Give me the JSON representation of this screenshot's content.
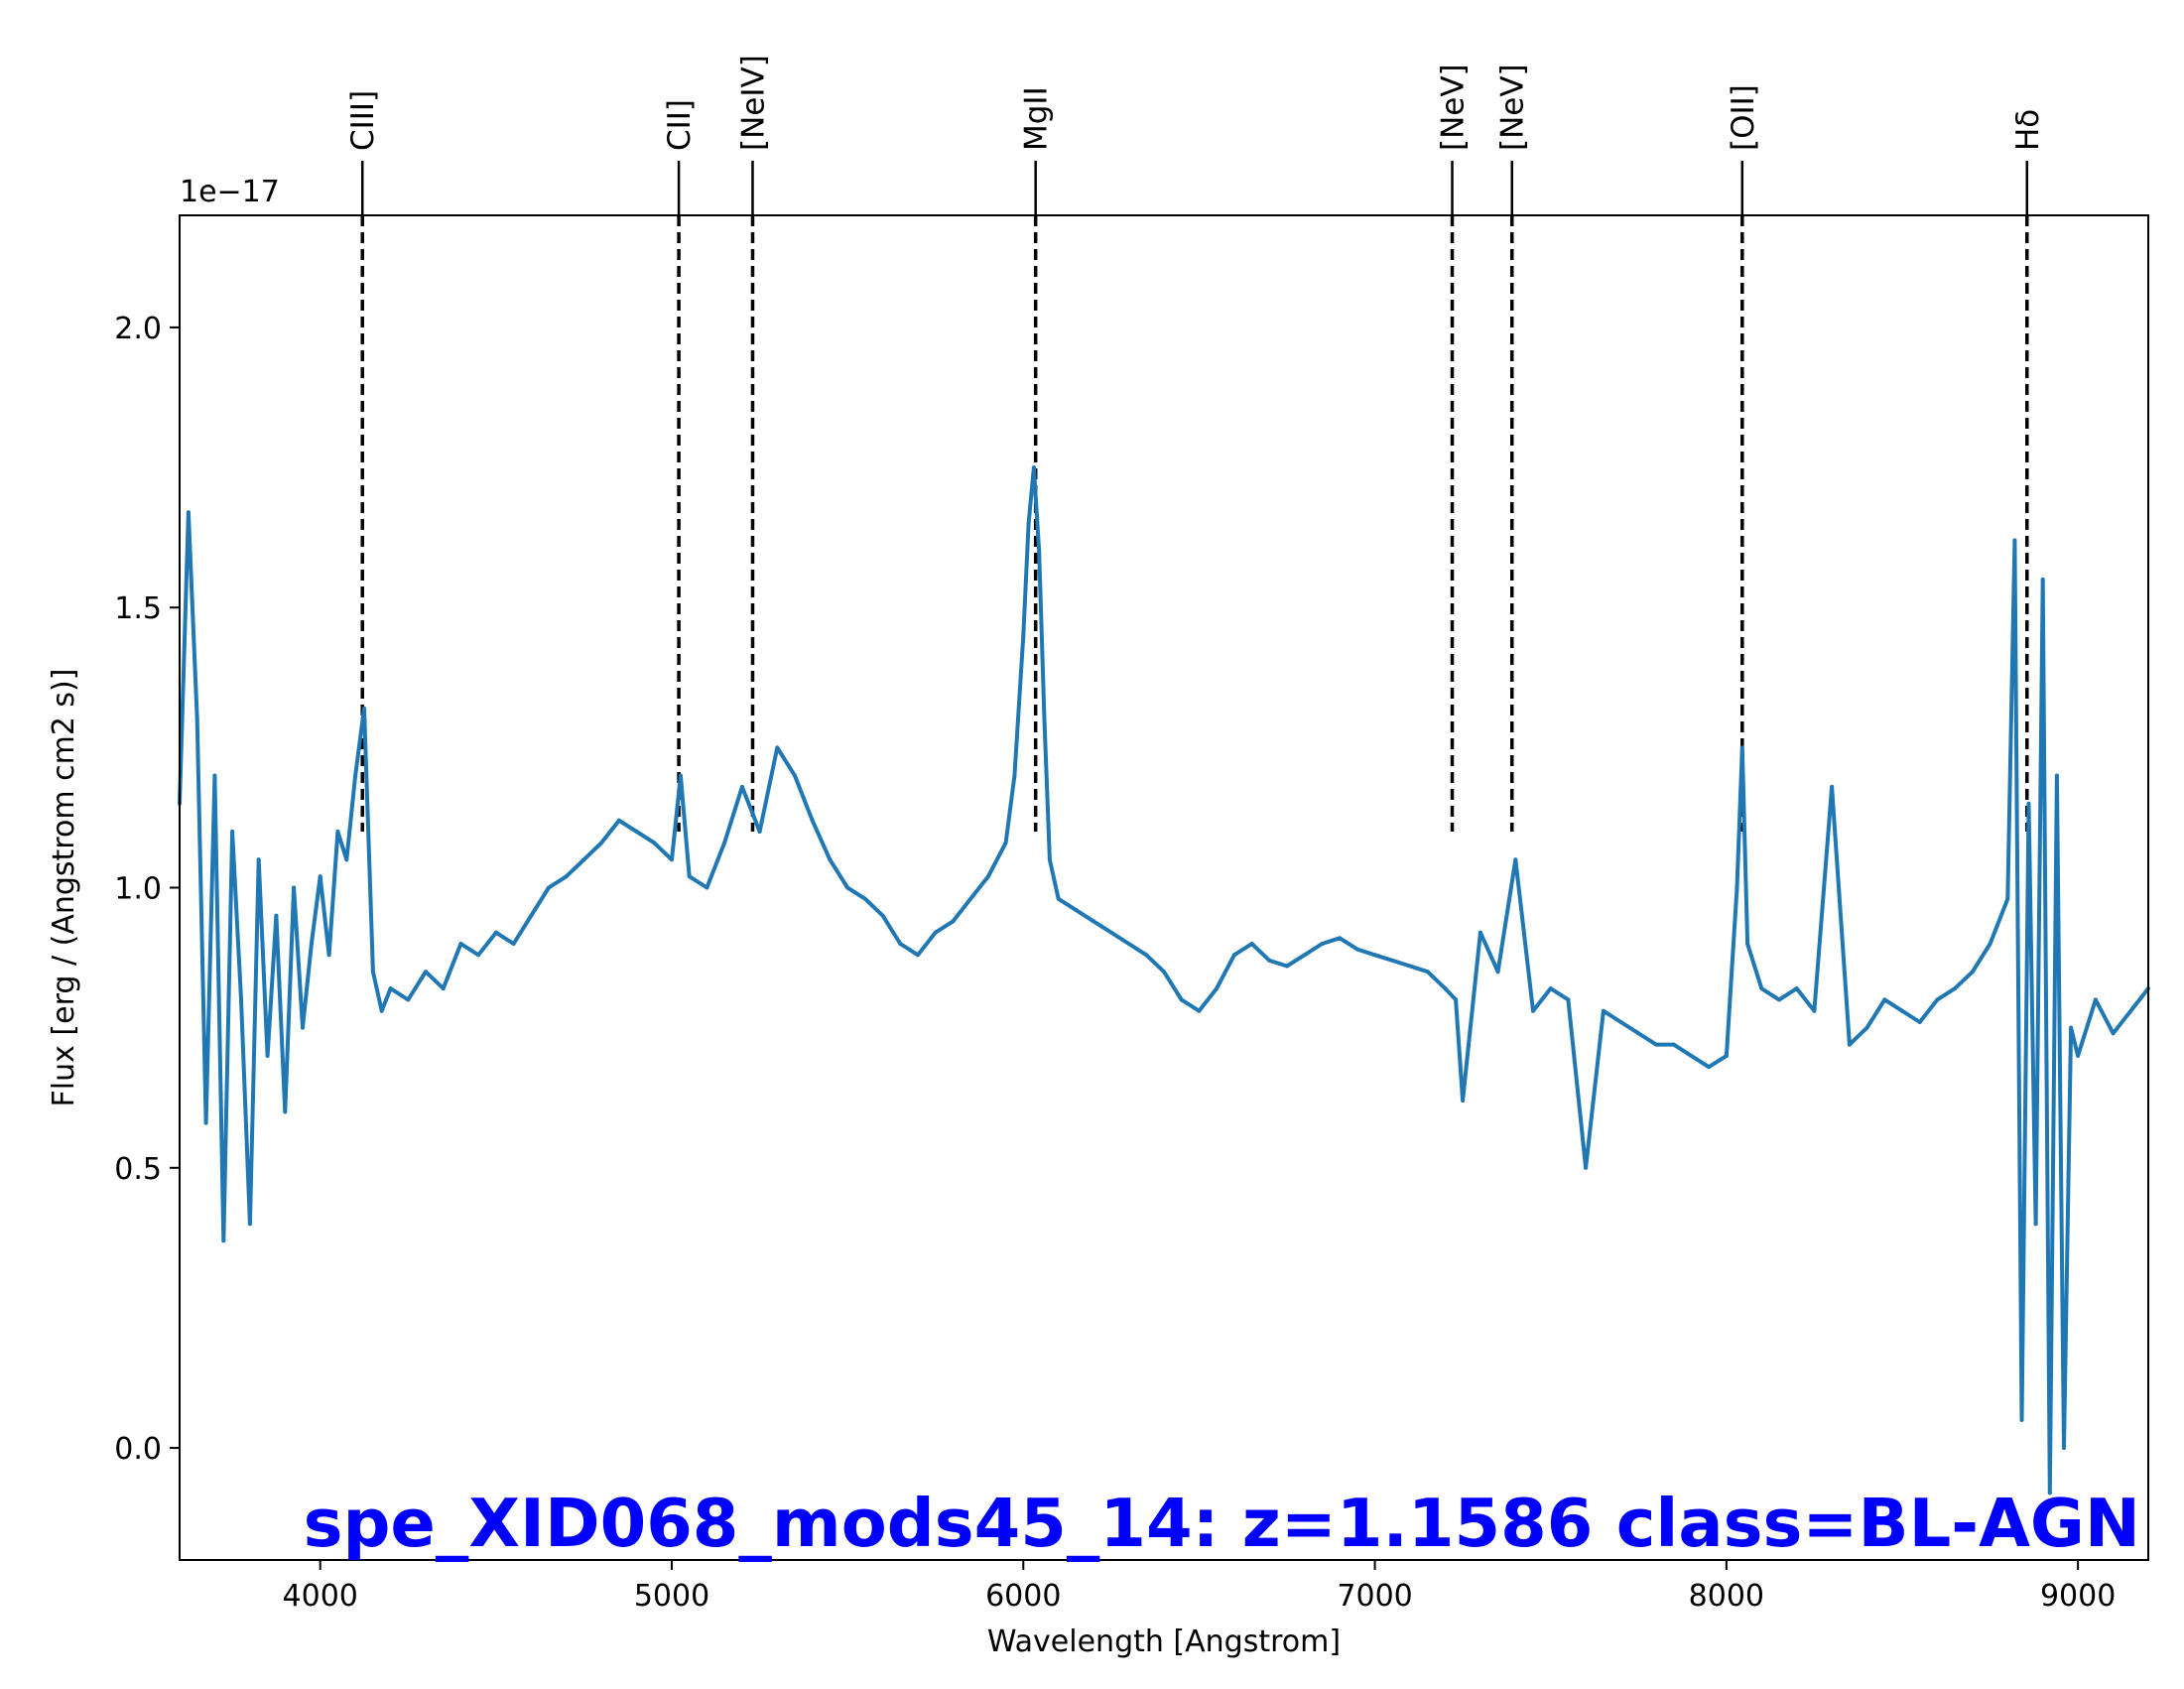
{
  "chart_data": {
    "type": "line",
    "title": "spe_XID068_mods45_14: z=1.1586 class=BL-AGN",
    "title_color": "#0000ff",
    "xlabel": "Wavelength [Angstrom]",
    "ylabel": "Flux [erg / (Angstrom cm2 s)]",
    "y_offset_label": "1e−17",
    "xlim": [
      3600,
      9200
    ],
    "ylim": [
      -0.2,
      2.2
    ],
    "x_ticks": [
      4000,
      5000,
      6000,
      7000,
      8000,
      9000
    ],
    "x_tick_labels": [
      "4000",
      "5000",
      "6000",
      "7000",
      "8000",
      "9000"
    ],
    "y_ticks": [
      0.0,
      0.5,
      1.0,
      1.5,
      2.0
    ],
    "y_tick_labels": [
      "0.0",
      "0.5",
      "1.0",
      "1.5",
      "2.0"
    ],
    "grid": false,
    "series_color": "#1f77b4",
    "series": [
      {
        "x": [
          3600,
          3625,
          3650,
          3675,
          3700,
          3725,
          3750,
          3775,
          3800,
          3825,
          3850,
          3875,
          3900,
          3925,
          3950,
          3975,
          4000,
          4025,
          4050,
          4075,
          4100,
          4125,
          4150,
          4175,
          4200,
          4250,
          4300,
          4350,
          4400,
          4450,
          4500,
          4550,
          4600,
          4650,
          4700,
          4750,
          4800,
          4850,
          4900,
          4950,
          5000,
          5025,
          5050,
          5100,
          5150,
          5200,
          5250,
          5300,
          5350,
          5400,
          5450,
          5500,
          5550,
          5600,
          5650,
          5700,
          5750,
          5800,
          5850,
          5900,
          5950,
          5975,
          6000,
          6015,
          6030,
          6045,
          6060,
          6075,
          6100,
          6150,
          6200,
          6250,
          6300,
          6350,
          6400,
          6450,
          6500,
          6550,
          6600,
          6650,
          6700,
          6750,
          6800,
          6850,
          6900,
          6950,
          7000,
          7050,
          7100,
          7150,
          7200,
          7230,
          7250,
          7300,
          7350,
          7400,
          7450,
          7500,
          7550,
          7600,
          7650,
          7700,
          7750,
          7800,
          7850,
          7900,
          7950,
          8000,
          8030,
          8045,
          8060,
          8100,
          8150,
          8200,
          8250,
          8300,
          8350,
          8400,
          8450,
          8500,
          8550,
          8600,
          8650,
          8700,
          8750,
          8800,
          8820,
          8840,
          8860,
          8880,
          8900,
          8920,
          8940,
          8960,
          8980,
          9000,
          9050,
          9100,
          9150,
          9200
        ],
        "y": [
          1.15,
          1.67,
          1.3,
          0.58,
          1.2,
          0.37,
          1.1,
          0.8,
          0.4,
          1.05,
          0.7,
          0.95,
          0.6,
          1.0,
          0.75,
          0.9,
          1.02,
          0.88,
          1.1,
          1.05,
          1.2,
          1.32,
          0.85,
          0.78,
          0.82,
          0.8,
          0.85,
          0.82,
          0.9,
          0.88,
          0.92,
          0.9,
          0.95,
          1.0,
          1.02,
          1.05,
          1.08,
          1.12,
          1.1,
          1.08,
          1.05,
          1.2,
          1.02,
          1.0,
          1.08,
          1.18,
          1.1,
          1.25,
          1.2,
          1.12,
          1.05,
          1.0,
          0.98,
          0.95,
          0.9,
          0.88,
          0.92,
          0.94,
          0.98,
          1.02,
          1.08,
          1.2,
          1.45,
          1.65,
          1.75,
          1.6,
          1.3,
          1.05,
          0.98,
          0.96,
          0.94,
          0.92,
          0.9,
          0.88,
          0.85,
          0.8,
          0.78,
          0.82,
          0.88,
          0.9,
          0.87,
          0.86,
          0.88,
          0.9,
          0.91,
          0.89,
          0.88,
          0.87,
          0.86,
          0.85,
          0.82,
          0.8,
          0.62,
          0.92,
          0.85,
          1.05,
          0.78,
          0.82,
          0.8,
          0.5,
          0.78,
          0.76,
          0.74,
          0.72,
          0.72,
          0.7,
          0.68,
          0.7,
          1.0,
          1.25,
          0.9,
          0.82,
          0.8,
          0.82,
          0.78,
          1.18,
          0.72,
          0.75,
          0.8,
          0.78,
          0.76,
          0.8,
          0.82,
          0.85,
          0.9,
          0.98,
          1.62,
          0.05,
          1.15,
          0.4,
          1.55,
          -0.08,
          1.2,
          0.0,
          0.75,
          0.7,
          0.8,
          0.74,
          0.78,
          0.82
        ]
      }
    ],
    "emission_lines": [
      {
        "label": "CIII]",
        "x": 4120
      },
      {
        "label": "CII]",
        "x": 5020
      },
      {
        "label": "[NeIV]",
        "x": 5230
      },
      {
        "label": "MgII",
        "x": 6035
      },
      {
        "label": "[NeV]",
        "x": 7220
      },
      {
        "label": "[NeV]",
        "x": 7390
      },
      {
        "label": "[OII]",
        "x": 8045
      },
      {
        "label": "Hδ",
        "x": 8855
      }
    ]
  }
}
